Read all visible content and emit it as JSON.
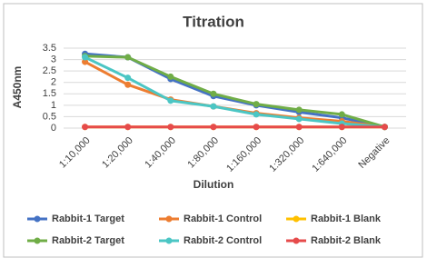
{
  "chart_data": {
    "type": "line",
    "title": "Titration",
    "x_label": "Dilution",
    "y_label": "A450nm",
    "categories": [
      "1:10,000",
      "1:20,000",
      "1:40,000",
      "1:80,000",
      "1:160,000",
      "1:320,000",
      "1:640,000",
      "Negative"
    ],
    "series": [
      {
        "name": "Rabbit-1 Target",
        "color": "#4472c4",
        "values": [
          3.25,
          3.1,
          2.15,
          1.4,
          1.0,
          0.7,
          0.45,
          0.05
        ]
      },
      {
        "name": "Rabbit-1 Control",
        "color": "#ed7d31",
        "values": [
          2.9,
          1.9,
          1.25,
          0.95,
          0.65,
          0.45,
          0.3,
          0.05
        ]
      },
      {
        "name": "Rabbit-1 Blank",
        "color": "#ffc000",
        "values": [
          0.05,
          0.05,
          0.05,
          0.05,
          0.05,
          0.05,
          0.05,
          0.05
        ]
      },
      {
        "name": "Rabbit-2 Target",
        "color": "#70ad47",
        "values": [
          3.15,
          3.1,
          2.25,
          1.5,
          1.05,
          0.8,
          0.6,
          0.05
        ]
      },
      {
        "name": "Rabbit-2 Control",
        "color": "#4bc6c4",
        "values": [
          3.1,
          2.2,
          1.2,
          0.95,
          0.6,
          0.4,
          0.2,
          0.05
        ]
      },
      {
        "name": "Rabbit-2 Blank",
        "color": "#e64b4b",
        "values": [
          0.05,
          0.05,
          0.05,
          0.05,
          0.05,
          0.05,
          0.05,
          0.05
        ]
      }
    ],
    "ylim": [
      0,
      3.5
    ],
    "yticks": [
      0,
      0.5,
      1,
      1.5,
      2,
      2.5,
      3,
      3.5
    ],
    "grid": true,
    "legend": "bottom"
  }
}
